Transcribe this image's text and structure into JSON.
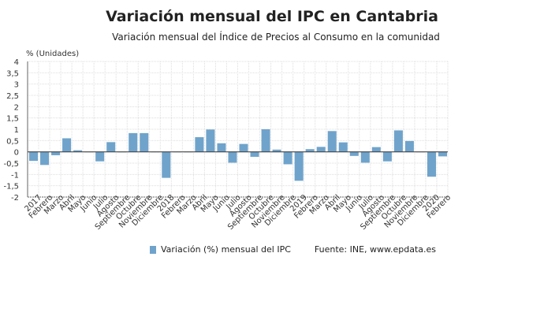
{
  "title": "Variación mensual del IPC en Cantabria",
  "subtitle": "Variación mensual del Índice de Precios al Consumo en la comunidad",
  "source": "Fuente: INE, www.epdata.es",
  "chart_data": {
    "type": "bar",
    "ylabel": "% (Unidades)",
    "ylim": [
      -2,
      4
    ],
    "yticks": [
      "4",
      "3,5",
      "3",
      "2,5",
      "2",
      "1,5",
      "1",
      "0,5",
      "0",
      "-0,5",
      "-1",
      "-1,5",
      "-2"
    ],
    "grid": true,
    "legend_position": "bottom",
    "bar_color": "#6fa3cb",
    "categories": [
      "2017",
      "Febrero",
      "Marzo",
      "Abril",
      "Mayo",
      "Junio",
      "Julio",
      "Agosto",
      "Septiembre",
      "Octubre",
      "Noviembre",
      "Diciembre",
      "2018",
      "Febrero",
      "Marzo",
      "Abril",
      "Mayo",
      "Junio",
      "Julio",
      "Agosto",
      "Septiembre",
      "Octubre",
      "Noviembre",
      "Diciembre",
      "2019",
      "Febrero",
      "Marzo",
      "Abril",
      "Mayo",
      "Junio",
      "Julio",
      "Agosto",
      "Septiembre",
      "Octubre",
      "Noviembre",
      "Diciembre",
      "2020",
      "Febrero"
    ],
    "series": [
      {
        "name": "Variación (%) mensual del IPC",
        "values": [
          -0.4,
          -0.58,
          -0.15,
          0.6,
          0.07,
          0.0,
          -0.42,
          0.43,
          -0.02,
          0.83,
          0.83,
          0.0,
          -1.15,
          0.0,
          -0.01,
          0.65,
          0.99,
          0.38,
          -0.48,
          0.35,
          -0.22,
          1.0,
          0.1,
          -0.55,
          -1.28,
          0.12,
          0.22,
          0.92,
          0.42,
          -0.18,
          -0.48,
          0.21,
          -0.42,
          0.95,
          0.48,
          0.0,
          -1.1,
          -0.2
        ]
      }
    ]
  }
}
